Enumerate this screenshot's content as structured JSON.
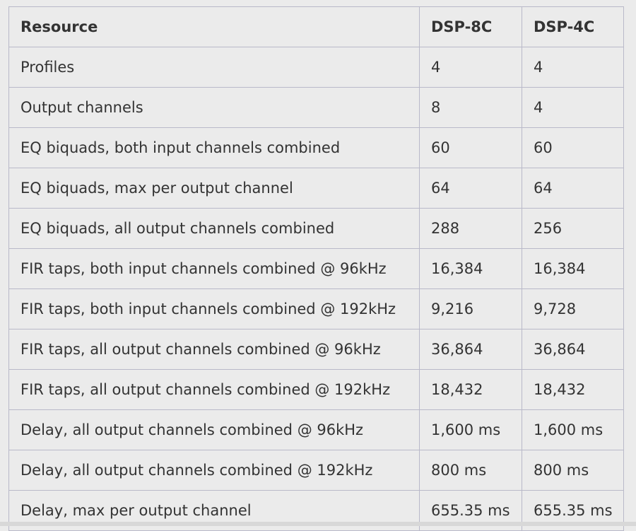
{
  "table": {
    "headers": [
      "Resource",
      "DSP-8C",
      "DSP-4C"
    ],
    "rows": [
      [
        "Profiles",
        "4",
        "4"
      ],
      [
        "Output channels",
        "8",
        "4"
      ],
      [
        "EQ biquads, both input channels combined",
        "60",
        "60"
      ],
      [
        "EQ biquads, max per output channel",
        "64",
        "64"
      ],
      [
        "EQ biquads, all output channels combined",
        "288",
        "256"
      ],
      [
        "FIR taps, both input channels combined @ 96kHz",
        "16,384",
        "16,384"
      ],
      [
        "FIR taps, both input channels combined @ 192kHz",
        "9,216",
        "9,728"
      ],
      [
        "FIR taps, all output channels combined @ 96kHz",
        "36,864",
        "36,864"
      ],
      [
        "FIR taps, all output channels combined @ 192kHz",
        "18,432",
        "18,432"
      ],
      [
        "Delay, all output channels combined @ 96kHz",
        "1,600 ms",
        "1,600 ms"
      ],
      [
        "Delay, all output channels combined @ 192kHz",
        "800 ms",
        "800 ms"
      ],
      [
        "Delay, max per output channel",
        "655.35 ms",
        "655.35 ms"
      ]
    ]
  }
}
